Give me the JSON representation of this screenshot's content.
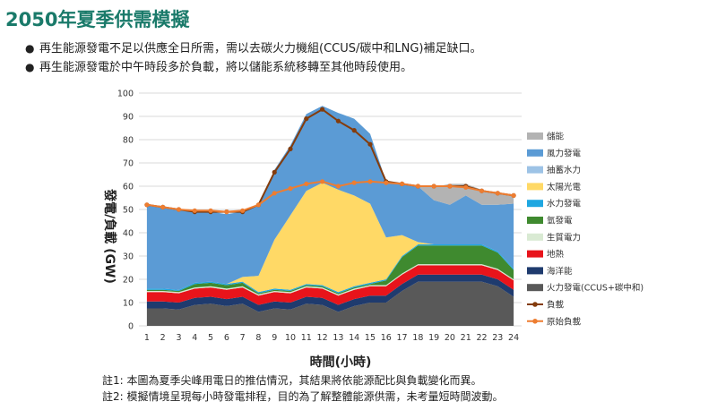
{
  "page": {
    "title": "2050年夏季供需模擬",
    "bullets": [
      "再生能源發電不足以供應全日所需，需以去碳火力機組(CCUS/碳中和LNG)補足缺口。",
      "再生能源發電於中午時段多於負載，將以儲能系統移轉至其他時段使用。"
    ],
    "notes": [
      "註1: 本圖為夏季尖峰用電日的推估情況，其結果將依能源配比與負載變化而異。",
      "註2: 模擬情境呈現每小時發電排程，目的為了解整體能源供需，未考量短時間波動。"
    ]
  },
  "chart_data": {
    "type": "area",
    "xlabel": "時間(小時)",
    "ylabel": "發電/負載 (GW)",
    "ylim": [
      0,
      100
    ],
    "yticks": [
      0,
      10,
      20,
      30,
      40,
      50,
      60,
      70,
      80,
      90,
      100
    ],
    "x": [
      1,
      2,
      3,
      4,
      5,
      6,
      7,
      8,
      9,
      10,
      11,
      12,
      13,
      14,
      15,
      16,
      17,
      18,
      19,
      20,
      21,
      22,
      23,
      24
    ],
    "legend_position": "right",
    "stacked_series": [
      {
        "name": "火力發電(CCUS+碳中和)",
        "color": "#595959",
        "values": [
          7.5,
          7.5,
          7,
          9,
          9.5,
          8.5,
          9.5,
          6,
          7.5,
          7,
          9.5,
          9,
          6,
          8.5,
          10,
          10,
          15,
          19,
          19,
          19,
          19,
          19,
          17,
          12.5
        ]
      },
      {
        "name": "海洋能",
        "color": "#1f3b6e",
        "values": [
          3,
          3,
          3,
          3,
          3,
          3,
          3,
          3,
          3,
          3,
          3,
          3,
          3,
          3,
          3,
          3,
          3,
          3,
          3,
          3,
          3,
          3,
          3,
          3
        ]
      },
      {
        "name": "地熱",
        "color": "#e8141b",
        "values": [
          4,
          4,
          4,
          4,
          4,
          4,
          4,
          4,
          4,
          4,
          4,
          4,
          4,
          4,
          4,
          4,
          4,
          4,
          4,
          4,
          4,
          4,
          4,
          4
        ]
      },
      {
        "name": "生質電力",
        "color": "#d9ead3",
        "values": [
          0.5,
          0.5,
          0.5,
          0.5,
          0.5,
          0.5,
          0.5,
          0.5,
          0.5,
          0.5,
          0.5,
          0.5,
          0.5,
          0.5,
          0.5,
          0.5,
          0.5,
          0.5,
          0.5,
          0.5,
          0.5,
          0.5,
          0.5,
          0.5
        ]
      },
      {
        "name": "氫發電",
        "color": "#3f8a2f",
        "values": [
          0.5,
          0.5,
          0.5,
          1.5,
          1.5,
          1.5,
          1.5,
          0.5,
          0.5,
          0.5,
          0.5,
          0.5,
          0.5,
          0.5,
          0.5,
          2,
          7,
          8,
          8,
          8,
          8,
          8,
          7,
          4
        ]
      },
      {
        "name": "水力發電",
        "color": "#1ea7e1",
        "values": [
          0.5,
          0.5,
          0.5,
          0.5,
          0.5,
          0.5,
          0.5,
          0.5,
          0.5,
          0.5,
          0.5,
          0.5,
          0.5,
          0.5,
          0.5,
          0.5,
          0.5,
          0.5,
          0.5,
          0.5,
          0.5,
          0.5,
          0.5,
          0.5
        ]
      },
      {
        "name": "太陽光電",
        "color": "#ffd966",
        "values": [
          0,
          0,
          0,
          0,
          0,
          0,
          2,
          7,
          21,
          32,
          40,
          44,
          44,
          39,
          34,
          18,
          9,
          1,
          0,
          0,
          0,
          0,
          0,
          0
        ]
      },
      {
        "name": "抽蓄水力",
        "color": "#9dc3e6",
        "values": [
          0,
          0,
          0,
          0,
          0,
          0,
          0,
          0,
          0,
          0,
          0,
          0,
          0,
          0,
          0,
          0,
          0,
          0,
          0,
          0,
          0,
          0,
          0,
          0
        ]
      },
      {
        "name": "風力發電",
        "color": "#5b9bd5",
        "values": [
          36,
          35.5,
          34.5,
          31,
          30,
          30,
          28,
          30,
          30,
          30,
          33,
          33,
          33,
          33,
          30,
          24,
          22,
          24,
          19,
          17,
          21,
          17,
          20,
          28
        ]
      },
      {
        "name": "儲能",
        "color": "#b3b3b3",
        "values": [
          0,
          0,
          0,
          0,
          0,
          0,
          0,
          0,
          0,
          0,
          0,
          0,
          0,
          0,
          0,
          0,
          0,
          0,
          5.5,
          9,
          5,
          6.5,
          5,
          4
        ]
      }
    ],
    "line_series": [
      {
        "name": "負載",
        "color": "#843c0c",
        "values": [
          52,
          51,
          50,
          49,
          49,
          49,
          49,
          52,
          66,
          76,
          89,
          93,
          88,
          84,
          78,
          62,
          61,
          60,
          60,
          60,
          60,
          58,
          57,
          56
        ]
      },
      {
        "name": "原始負載",
        "color": "#ed7d31",
        "values": [
          52,
          51,
          50,
          49.5,
          49.5,
          49,
          49.5,
          52,
          57,
          59,
          61,
          62,
          60,
          61.5,
          62,
          61.5,
          61,
          60,
          60,
          60,
          59.5,
          58,
          57,
          56
        ]
      }
    ]
  }
}
